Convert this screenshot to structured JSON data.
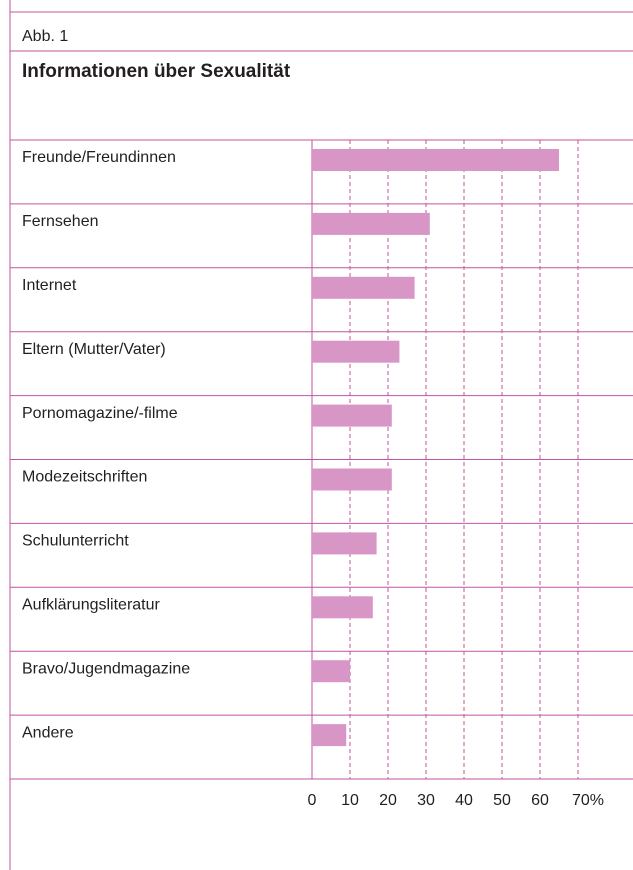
{
  "chart_data": {
    "type": "bar",
    "figure_label": "Abb. 1",
    "title": "Informationen über Sexualität",
    "categories": [
      "Freunde/Freundinnen",
      "Fernsehen",
      "Internet",
      "Eltern (Mutter/Vater)",
      "Pornomagazine/-filme",
      "Modezeitschriften",
      "Schulunterricht",
      "Aufklärungsliteratur",
      "Bravo/Jugendmagazine",
      "Andere"
    ],
    "values": [
      65,
      31,
      27,
      23,
      21,
      21,
      17,
      16,
      10,
      9
    ],
    "color": "#d896c6",
    "xlim": [
      0,
      70
    ],
    "xticks": [
      0,
      10,
      20,
      30,
      40,
      50,
      60,
      {
        "value": 70,
        "label": "70%"
      }
    ],
    "grid": true
  }
}
